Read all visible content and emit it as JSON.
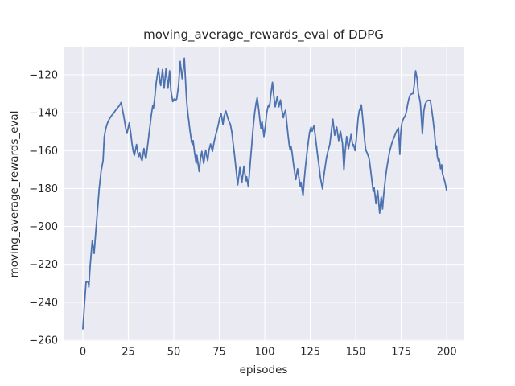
{
  "figure": {
    "title": "moving_average_rewards_eval of DDPG",
    "xlabel": "episodes",
    "ylabel": "moving_average_rewards_eval",
    "colors": {
      "figure_background": "#ffffff",
      "axes_background": "#eaeaf2",
      "grid": "#ffffff",
      "line": "#4c72b0",
      "text": "#262626"
    }
  },
  "chart_data": {
    "type": "line",
    "title": "moving_average_rewards_eval of DDPG",
    "xlabel": "episodes",
    "ylabel": "moving_average_rewards_eval",
    "xlim": [
      -10.6,
      209.2
    ],
    "ylim": [
      -260.4,
      -105.6
    ],
    "x_ticks": [
      0,
      25,
      50,
      75,
      100,
      125,
      150,
      175,
      200
    ],
    "y_ticks": [
      -120,
      -140,
      -160,
      -180,
      -200,
      -220,
      -240,
      -260
    ],
    "grid": true,
    "legend_position": "none",
    "series": [
      {
        "name": "moving_average_rewards_eval",
        "color": "#4c72b0",
        "x": [
          0,
          0.9,
          1.8,
          3,
          3.3,
          4,
          5.2,
          6.2,
          7,
          8,
          9,
          10,
          11.1,
          11.8,
          12.6,
          13.3,
          14,
          14.8,
          15.5,
          16.2,
          17,
          17.7,
          18.4,
          19.2,
          20,
          21,
          22.1,
          22.9,
          23.6,
          24.3,
          25.5,
          26.3,
          27,
          27.7,
          28.3,
          29.5,
          30.2,
          30.7,
          31.3,
          31.9,
          32.5,
          33.6,
          34.2,
          34.7,
          35.4,
          36.2,
          36.9,
          37.6,
          38.4,
          38.8,
          39.6,
          40.3,
          41.5,
          42.3,
          42.8,
          43.8,
          44.7,
          45.7,
          46.8,
          47.7,
          48.4,
          49.4,
          50.2,
          50.9,
          51.6,
          52.6,
          53.5,
          54.6,
          55.8,
          56.8,
          57.2,
          57.8,
          58.3,
          58.7,
          59.3,
          59.7,
          60.2,
          60.6,
          61.4,
          62.3,
          62.7,
          63.9,
          64.6,
          65.4,
          66.4,
          67.5,
          68.6,
          69.3,
          70.2,
          71.2,
          71.9,
          72.3,
          73,
          73.8,
          74.5,
          75.2,
          76,
          77,
          77.6,
          78.6,
          79.2,
          79.6,
          80.4,
          81.1,
          81.9,
          82.6,
          83.4,
          84.1,
          85.1,
          86.3,
          87.4,
          88.5,
          89.6,
          90,
          90.9,
          91.5,
          92.1,
          92.7,
          93.3,
          93.9,
          94.5,
          95.1,
          95.8,
          96.6,
          97.3,
          97.9,
          98.5,
          99.5,
          100.3,
          101,
          101.7,
          102.2,
          102.6,
          103.2,
          104.2,
          104.8,
          105.7,
          106.8,
          107.7,
          108.6,
          109.2,
          110.2,
          110.6,
          111.4,
          112.1,
          112.8,
          113.5,
          114,
          114.4,
          115,
          115.7,
          117,
          118,
          119.5,
          119.9,
          121,
          121.7,
          122.4,
          123.2,
          123.9,
          124.6,
          125.4,
          126,
          127,
          127.6,
          128.3,
          129,
          129.8,
          130.5,
          131.7,
          132.4,
          133.2,
          133.9,
          134.7,
          135.7,
          136.4,
          137.4,
          138.4,
          139.5,
          140.6,
          141.6,
          142.7,
          143.5,
          144.1,
          145,
          146,
          147.4,
          148.4,
          148.8,
          149.6,
          150.2,
          150.8,
          151.3,
          151.9,
          152.4,
          152.6,
          153.1,
          153.7,
          154.3,
          154.9,
          155.5,
          156.5,
          157.4,
          158,
          158.6,
          159.6,
          160.1,
          161.1,
          162,
          163.1,
          164,
          164.7,
          165.3,
          165.9,
          166.5,
          167.1,
          167.7,
          168.2,
          168.8,
          169.4,
          170,
          170.6,
          171.2,
          171.8,
          172.4,
          173.4,
          174.2,
          174.6,
          175.1,
          175.5,
          176.1,
          176.7,
          177.3,
          177.9,
          178.5,
          179.2,
          180,
          181,
          181.5,
          182.2,
          182.9,
          183.7,
          184.4,
          184.8,
          185.5,
          186.6,
          187.4,
          188.1,
          188.8,
          189.6,
          191,
          191.8,
          192.5,
          193.2,
          194,
          194.4,
          194.8,
          195.4,
          195.8,
          196.6,
          197.2,
          197.6,
          198.4,
          199.1,
          199.9
        ],
        "y": [
          -254,
          -241,
          -229,
          -229.5,
          -232,
          -221,
          -207.6,
          -214.2,
          -204,
          -192,
          -180,
          -171,
          -165.3,
          -152.6,
          -148.4,
          -146.2,
          -144.4,
          -143,
          -142,
          -141,
          -140.2,
          -139.1,
          -138.2,
          -137.3,
          -136.4,
          -134.6,
          -139.8,
          -144.1,
          -148.4,
          -150.9,
          -145.4,
          -150.5,
          -156.1,
          -160.4,
          -162.5,
          -156.8,
          -161.1,
          -163.2,
          -161.1,
          -163.9,
          -165.3,
          -158.9,
          -162.5,
          -164.2,
          -158.9,
          -152.6,
          -147,
          -141.3,
          -136.3,
          -137.7,
          -131.3,
          -124.3,
          -116.5,
          -122.8,
          -125.7,
          -117.2,
          -127.1,
          -116.9,
          -127.1,
          -117.9,
          -128.5,
          -134.2,
          -132.8,
          -133.5,
          -132.8,
          -125.7,
          -113,
          -122.1,
          -111.3,
          -129.9,
          -135.6,
          -141.3,
          -144.8,
          -148.4,
          -152.6,
          -155.4,
          -156.8,
          -154.7,
          -161.1,
          -166.8,
          -162.5,
          -171.1,
          -164.6,
          -160.4,
          -166.8,
          -159.7,
          -165.3,
          -159.7,
          -156.5,
          -160.4,
          -156.8,
          -154.7,
          -151.9,
          -149.1,
          -146.2,
          -142.7,
          -140.6,
          -146.2,
          -142,
          -139.1,
          -141.3,
          -142.7,
          -144.8,
          -146.2,
          -150.5,
          -156.1,
          -162.5,
          -168.9,
          -178.1,
          -168.9,
          -176.7,
          -168.2,
          -175.9,
          -173.8,
          -178.8,
          -172.4,
          -165.3,
          -158.3,
          -151.2,
          -144.8,
          -139.8,
          -135.6,
          -132.1,
          -137.7,
          -144.1,
          -148.4,
          -144.8,
          -152.6,
          -147,
          -140.6,
          -137,
          -135.9,
          -137,
          -131.3,
          -124,
          -129.9,
          -136.9,
          -131.6,
          -136.9,
          -133.3,
          -137.7,
          -142.7,
          -140.6,
          -138.7,
          -145.5,
          -151.9,
          -157.6,
          -159.7,
          -157.6,
          -161.1,
          -166.8,
          -175.3,
          -169.6,
          -178.8,
          -176.7,
          -183.8,
          -175.3,
          -168.2,
          -161.1,
          -155.4,
          -150.5,
          -147.6,
          -149.8,
          -147,
          -151.2,
          -156.8,
          -162.5,
          -168.2,
          -173.8,
          -180.2,
          -173.8,
          -168.2,
          -163.9,
          -160.4,
          -156.8,
          -151.2,
          -143.4,
          -151.9,
          -147.6,
          -154.7,
          -149.8,
          -156.1,
          -170.3,
          -161.1,
          -152.6,
          -159,
          -151.5,
          -157.6,
          -156.8,
          -160,
          -154.7,
          -148.4,
          -142.7,
          -139.1,
          -137.7,
          -138.7,
          -135.9,
          -142,
          -148.4,
          -154.7,
          -159.7,
          -161.8,
          -164.6,
          -168.9,
          -173.8,
          -181.6,
          -179.5,
          -188,
          -181,
          -193,
          -184.5,
          -190.8,
          -183.8,
          -178.1,
          -173.1,
          -168.9,
          -165.3,
          -162.5,
          -159.7,
          -157.6,
          -155.4,
          -154,
          -152.6,
          -151.2,
          -149.8,
          -148.1,
          -162,
          -152,
          -147,
          -144.8,
          -143.4,
          -142.4,
          -141.3,
          -139.1,
          -135.6,
          -132.5,
          -130.5,
          -130,
          -129.9,
          -125,
          -117.9,
          -122.1,
          -129.9,
          -131.3,
          -135,
          -151.2,
          -139.1,
          -135.6,
          -134.2,
          -133.5,
          -133.5,
          -139.1,
          -144,
          -150,
          -159,
          -157.5,
          -163,
          -165.5,
          -164.4,
          -169.6,
          -167.5,
          -172,
          -174.5,
          -177,
          -181
        ]
      }
    ]
  }
}
